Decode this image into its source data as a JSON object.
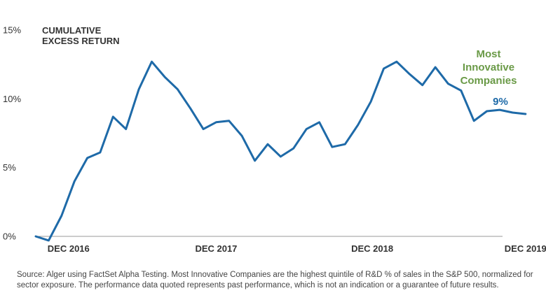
{
  "chart_data": {
    "type": "line",
    "ylabel_lines": [
      "CUMULATIVE",
      "EXCESS RETURN"
    ],
    "y_ticks": [
      {
        "value": 0,
        "label": "0%"
      },
      {
        "value": 5,
        "label": "5%"
      },
      {
        "value": 10,
        "label": "10%"
      },
      {
        "value": 15,
        "label": "15%"
      }
    ],
    "ylim": [
      0,
      15
    ],
    "xlim": [
      0,
      36
    ],
    "x_ticks": [
      {
        "value": 2,
        "label": "DEC 2016"
      },
      {
        "value": 14,
        "label": "DEC 2017"
      },
      {
        "value": 26,
        "label": "DEC 2018"
      },
      {
        "value": 38,
        "label": "DEC 2019"
      }
    ],
    "series": [
      {
        "name": "Most Innovative Companies",
        "color": "#1e6aa8",
        "x": [
          0,
          1,
          2,
          3,
          4,
          5,
          6,
          7,
          8,
          9,
          10,
          11,
          12,
          13,
          14,
          15,
          16,
          17,
          18,
          19,
          20,
          21,
          22,
          23,
          24,
          25,
          26,
          27,
          28,
          29,
          30,
          31,
          32,
          33,
          34,
          35,
          36,
          37,
          38
        ],
        "y": [
          0.0,
          -0.3,
          1.5,
          4.0,
          5.7,
          6.1,
          8.7,
          7.8,
          10.7,
          12.7,
          11.6,
          10.7,
          9.3,
          7.8,
          8.3,
          8.4,
          7.3,
          5.5,
          6.7,
          5.8,
          6.4,
          7.8,
          8.3,
          6.5,
          6.7,
          8.1,
          9.8,
          12.2,
          12.7,
          11.8,
          11.0,
          12.3,
          11.1,
          10.6,
          8.4,
          9.1,
          9.2,
          9.0,
          8.9
        ]
      }
    ],
    "annotation": {
      "name_lines": [
        "Most",
        "Innovative",
        "Companies"
      ],
      "value_label": "9%",
      "name_color": "#6a9a47",
      "value_color": "#1e6aa8"
    },
    "grid": false
  },
  "source_note": "Source: Alger using FactSet Alpha Testing. Most Innovative Companies are the highest quintile of R&D % of sales in the S&P 500, normalized for sector exposure. The performance data quoted represents past performance, which is not an indication or a guarantee of future results."
}
